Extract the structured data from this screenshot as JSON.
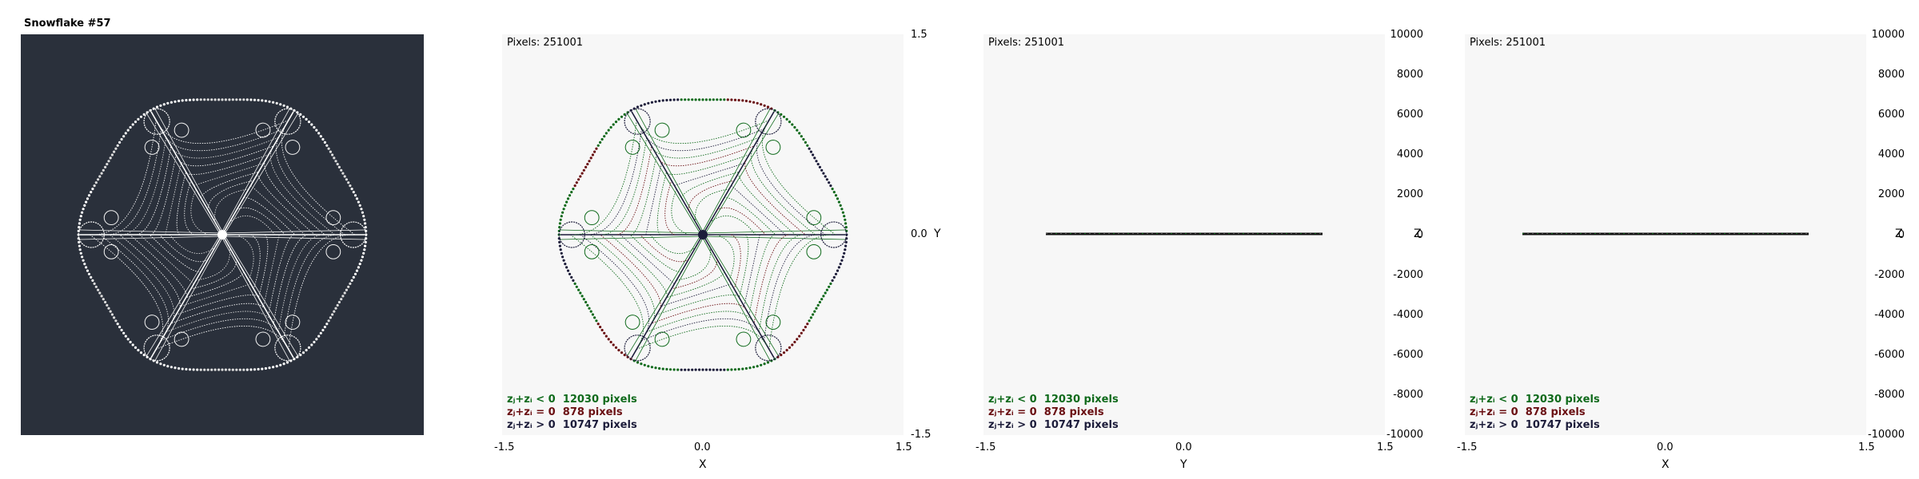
{
  "window": {
    "title": "Snowflake #57"
  },
  "colors": {
    "canvas_bg": "#2a303b",
    "panel_bg": "#f7f7f7",
    "flake_white": "#ffffff",
    "green": "#0f6a1b",
    "dark_red": "#6a0f12",
    "navy": "#1c1c3a"
  },
  "panels": [
    {
      "pixels_label": "Pixels: 251001",
      "x_axis": {
        "name": "X",
        "ticks": [
          "-1.5",
          "0.0",
          "1.5"
        ]
      },
      "y_axis": {
        "name": "Y",
        "ticks": [
          "1.5",
          "0.0",
          "-1.5"
        ]
      },
      "legend": [
        {
          "label": "zⱼ+zᵢ < 0",
          "count": "12030 pixels"
        },
        {
          "label": "zⱼ+zᵢ = 0",
          "count": "878 pixels"
        },
        {
          "label": "zⱼ+zᵢ > 0",
          "count": "10747 pixels"
        }
      ]
    },
    {
      "pixels_label": "Pixels: 251001",
      "x_axis": {
        "name": "Y",
        "ticks": [
          "-1.5",
          "0.0",
          "1.5"
        ]
      },
      "y_axis": {
        "name": "Z",
        "ticks": [
          "10000",
          "8000",
          "6000",
          "4000",
          "2000",
          "0",
          "-2000",
          "-4000",
          "-6000",
          "-8000",
          "-10000"
        ]
      },
      "legend": [
        {
          "label": "zⱼ+zᵢ < 0",
          "count": "12030 pixels"
        },
        {
          "label": "zⱼ+zᵢ = 0",
          "count": "878 pixels"
        },
        {
          "label": "zⱼ+zᵢ > 0",
          "count": "10747 pixels"
        }
      ]
    },
    {
      "pixels_label": "Pixels: 251001",
      "x_axis": {
        "name": "X",
        "ticks": [
          "-1.5",
          "0.0",
          "1.5"
        ]
      },
      "y_axis": {
        "name": "Z",
        "ticks": [
          "10000",
          "8000",
          "6000",
          "4000",
          "2000",
          "0",
          "-2000",
          "-4000",
          "-6000",
          "-8000",
          "-10000"
        ]
      },
      "legend": [
        {
          "label": "zⱼ+zᵢ < 0",
          "count": "12030 pixels"
        },
        {
          "label": "zⱼ+zᵢ = 0",
          "count": "878 pixels"
        },
        {
          "label": "zⱼ+zᵢ > 0",
          "count": "10747 pixels"
        }
      ]
    }
  ]
}
